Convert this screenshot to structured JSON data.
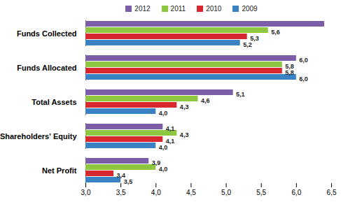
{
  "chart_data": {
    "type": "bar",
    "orientation": "horizontal",
    "data_labels": true,
    "grid": false,
    "legend": "top",
    "categories": [
      "Funds Collected",
      "Funds Allocated",
      "Total Assets",
      "Shareholders' Equity",
      "Net Profit"
    ],
    "series": [
      {
        "name": "2012",
        "color": "#7b5ea7",
        "values": [
          6.4,
          6.0,
          5.1,
          4.1,
          3.9
        ],
        "value_labels": [
          null,
          "6,0",
          "5,1",
          "4,1",
          "3,9"
        ]
      },
      {
        "name": "2011",
        "color": "#8dc63f",
        "values": [
          5.6,
          5.8,
          4.6,
          4.3,
          4.0
        ],
        "value_labels": [
          "5,6",
          "5,8",
          "4,6",
          "4,3",
          "4,0"
        ]
      },
      {
        "name": "2010",
        "color": "#d7282f",
        "values": [
          5.3,
          5.8,
          4.3,
          4.1,
          3.4
        ],
        "value_labels": [
          "5,3",
          "5,8",
          "4,3",
          "4,1",
          "3,4"
        ]
      },
      {
        "name": "2009",
        "color": "#3b82c4",
        "values": [
          5.2,
          6.0,
          4.0,
          4.0,
          3.5
        ],
        "value_labels": [
          "5,2",
          "6,0",
          "4,0",
          "4,0",
          "3,5"
        ]
      }
    ],
    "xlim": [
      3.0,
      6.5
    ],
    "xticks": [
      {
        "value": 3.0,
        "label": "3,0"
      },
      {
        "value": 3.5,
        "label": "3,5"
      },
      {
        "value": 4.0,
        "label": "4,0"
      },
      {
        "value": 4.5,
        "label": "4,5"
      },
      {
        "value": 5.0,
        "label": "5,0"
      },
      {
        "value": 5.5,
        "label": "5,5"
      },
      {
        "value": 6.0,
        "label": "6,0"
      },
      {
        "value": 6.5,
        "label": "6,5"
      }
    ]
  }
}
